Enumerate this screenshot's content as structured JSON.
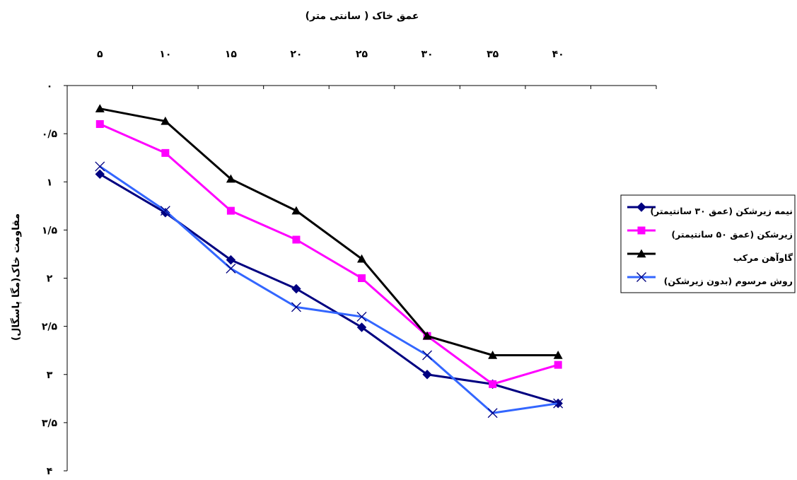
{
  "chart_data": {
    "type": "line",
    "title": "عمق خاک ( سانتی متر)",
    "xlabel": "",
    "ylabel": "مقاومت خاک(مگا پاسگال)",
    "x_tick_labels": [
      "۵",
      "۱۰",
      "۱۵",
      "۲۰",
      "۲۵",
      "۳۰",
      "۳۵",
      "۴۰"
    ],
    "y_tick_labels": [
      "۰",
      "۰/۵",
      "۱",
      "۱/۵",
      "۲",
      "۲/۵",
      "۳",
      "۳/۵",
      "۴"
    ],
    "x_axis_position": "top",
    "y_reversed": true,
    "ylim": [
      0,
      4
    ],
    "grid": false,
    "legend_position": "right",
    "x": [
      5,
      10,
      15,
      20,
      25,
      30,
      35,
      40
    ],
    "series": [
      {
        "name": "نیمه زیرشکن (عمق ۳۰ سانتیمتر)",
        "color": "#000080",
        "marker": "diamond",
        "values": [
          0.92,
          1.32,
          1.81,
          2.11,
          2.51,
          3.0,
          3.1,
          3.3
        ]
      },
      {
        "name": "زیرشکن (عمق ۵۰ سانتیمتر)",
        "color": "#FF00FF",
        "marker": "square",
        "values": [
          0.4,
          0.7,
          1.3,
          1.6,
          2.0,
          2.6,
          3.1,
          2.9
        ]
      },
      {
        "name": "گاوآهن مرکب",
        "color": "#000000",
        "marker": "triangle",
        "values": [
          0.24,
          0.37,
          0.97,
          1.3,
          1.8,
          2.6,
          2.8,
          2.8
        ]
      },
      {
        "name": "روش مرسوم (بدون زیرشکن)",
        "color": "#3366FF",
        "marker": "x",
        "values": [
          0.84,
          1.3,
          1.9,
          2.3,
          2.4,
          2.8,
          3.4,
          3.3
        ]
      }
    ]
  }
}
